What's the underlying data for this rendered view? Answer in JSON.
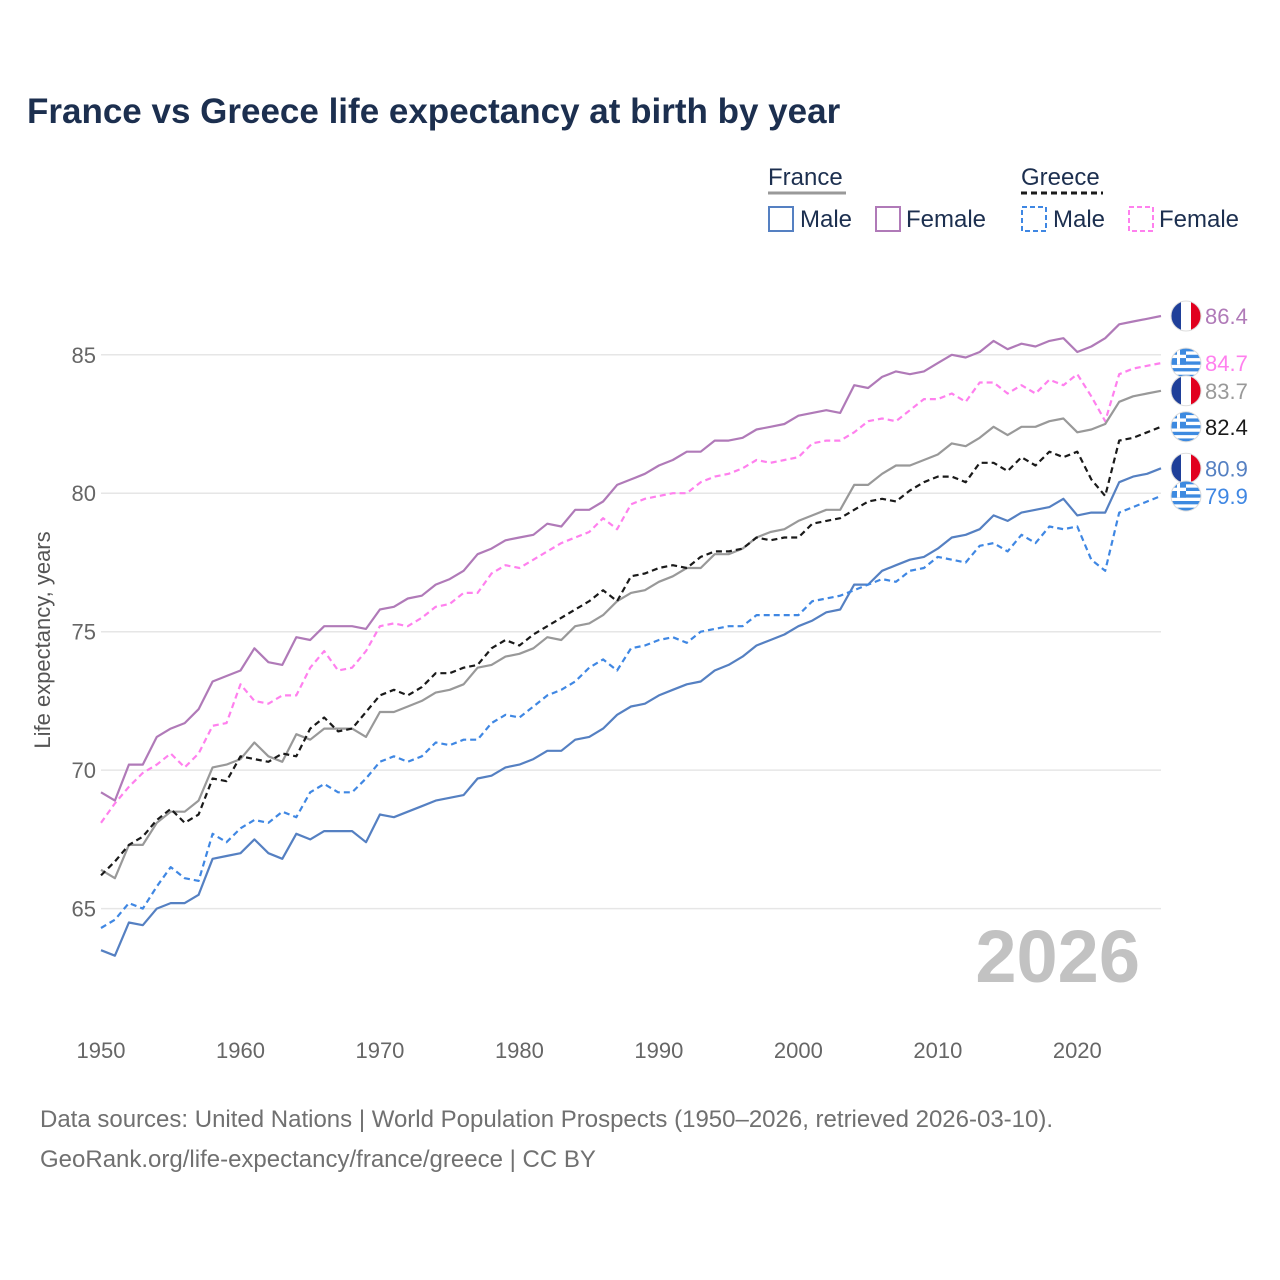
{
  "chart_data": {
    "type": "line",
    "title": "France vs Greece life expectancy at birth by year",
    "xlabel": "",
    "ylabel": "Life expectancy, years",
    "xlim": [
      1950,
      2026
    ],
    "ylim": [
      61.7,
      87.7
    ],
    "x_ticks": [
      1950,
      1960,
      1970,
      1980,
      1990,
      2000,
      2010,
      2020
    ],
    "y_ticks": [
      65,
      70,
      75,
      80,
      85
    ],
    "year_label": "2026",
    "legend": {
      "groups": [
        {
          "name": "France",
          "entries": [
            "Male",
            "Female"
          ]
        },
        {
          "name": "Greece",
          "entries": [
            "Male",
            "Female"
          ]
        }
      ],
      "placement": "top-right"
    },
    "x": [
      1950,
      1951,
      1952,
      1953,
      1954,
      1955,
      1956,
      1957,
      1958,
      1959,
      1960,
      1961,
      1962,
      1963,
      1964,
      1965,
      1966,
      1967,
      1968,
      1969,
      1970,
      1971,
      1972,
      1973,
      1974,
      1975,
      1976,
      1977,
      1978,
      1979,
      1980,
      1981,
      1982,
      1983,
      1984,
      1985,
      1986,
      1987,
      1988,
      1989,
      1990,
      1991,
      1992,
      1993,
      1994,
      1995,
      1996,
      1997,
      1998,
      1999,
      2000,
      2001,
      2002,
      2003,
      2004,
      2005,
      2006,
      2007,
      2008,
      2009,
      2010,
      2011,
      2012,
      2013,
      2014,
      2015,
      2016,
      2017,
      2018,
      2019,
      2020,
      2021,
      2022,
      2023,
      2024,
      2025,
      2026
    ],
    "series": [
      {
        "key": "fr_female",
        "name": "France Female",
        "country": "France",
        "color": "#b07ab8",
        "dashed": false,
        "end_label": "86.4",
        "values": [
          69.2,
          68.9,
          70.2,
          70.2,
          71.2,
          71.5,
          71.7,
          72.2,
          73.2,
          73.4,
          73.6,
          74.4,
          73.9,
          73.8,
          74.8,
          74.7,
          75.2,
          75.2,
          75.2,
          75.1,
          75.8,
          75.9,
          76.2,
          76.3,
          76.7,
          76.9,
          77.2,
          77.8,
          78.0,
          78.3,
          78.4,
          78.5,
          78.9,
          78.8,
          79.4,
          79.4,
          79.7,
          80.3,
          80.5,
          80.7,
          81.0,
          81.2,
          81.5,
          81.5,
          81.9,
          81.9,
          82.0,
          82.3,
          82.4,
          82.5,
          82.8,
          82.9,
          83.0,
          82.9,
          83.9,
          83.8,
          84.2,
          84.4,
          84.3,
          84.4,
          84.7,
          85.0,
          84.9,
          85.1,
          85.5,
          85.2,
          85.4,
          85.3,
          85.5,
          85.6,
          85.1,
          85.3,
          85.6,
          86.1,
          86.2,
          86.3,
          86.4
        ]
      },
      {
        "key": "gr_female",
        "name": "Greece Female",
        "country": "Greece",
        "color": "#ff80ee",
        "dashed": true,
        "end_label": "84.7",
        "values": [
          68.1,
          68.8,
          69.4,
          69.9,
          70.2,
          70.6,
          70.1,
          70.6,
          71.6,
          71.7,
          73.1,
          72.5,
          72.4,
          72.7,
          72.7,
          73.7,
          74.3,
          73.6,
          73.7,
          74.3,
          75.2,
          75.3,
          75.2,
          75.5,
          75.9,
          76.0,
          76.4,
          76.4,
          77.1,
          77.4,
          77.3,
          77.6,
          77.9,
          78.2,
          78.4,
          78.6,
          79.1,
          78.7,
          79.6,
          79.8,
          79.9,
          80.0,
          80.0,
          80.4,
          80.6,
          80.7,
          80.9,
          81.2,
          81.1,
          81.2,
          81.3,
          81.8,
          81.9,
          81.9,
          82.2,
          82.6,
          82.7,
          82.6,
          83.0,
          83.4,
          83.4,
          83.6,
          83.3,
          84.0,
          84.0,
          83.6,
          83.9,
          83.6,
          84.1,
          83.9,
          84.3,
          83.5,
          82.6,
          84.3,
          84.5,
          84.6,
          84.7
        ]
      },
      {
        "key": "fr_both",
        "name": "France",
        "country": "France",
        "color": "#999999",
        "dashed": false,
        "end_label": "83.7",
        "values": [
          66.4,
          66.1,
          67.3,
          67.3,
          68.1,
          68.5,
          68.5,
          68.9,
          70.1,
          70.2,
          70.4,
          71.0,
          70.5,
          70.3,
          71.3,
          71.1,
          71.5,
          71.5,
          71.5,
          71.2,
          72.1,
          72.1,
          72.3,
          72.5,
          72.8,
          72.9,
          73.1,
          73.7,
          73.8,
          74.1,
          74.2,
          74.4,
          74.8,
          74.7,
          75.2,
          75.3,
          75.6,
          76.1,
          76.4,
          76.5,
          76.8,
          77.0,
          77.3,
          77.3,
          77.8,
          77.8,
          78.0,
          78.4,
          78.6,
          78.7,
          79.0,
          79.2,
          79.4,
          79.4,
          80.3,
          80.3,
          80.7,
          81.0,
          81.0,
          81.2,
          81.4,
          81.8,
          81.7,
          82.0,
          82.4,
          82.1,
          82.4,
          82.4,
          82.6,
          82.7,
          82.2,
          82.3,
          82.5,
          83.3,
          83.5,
          83.6,
          83.7
        ]
      },
      {
        "key": "gr_both",
        "name": "Greece",
        "country": "Greece",
        "color": "#1a1a1a",
        "dashed": true,
        "end_label": "82.4",
        "values": [
          66.2,
          66.7,
          67.3,
          67.6,
          68.2,
          68.6,
          68.1,
          68.4,
          69.7,
          69.6,
          70.5,
          70.4,
          70.3,
          70.6,
          70.5,
          71.5,
          71.9,
          71.4,
          71.5,
          72.1,
          72.7,
          72.9,
          72.7,
          73.0,
          73.5,
          73.5,
          73.7,
          73.8,
          74.4,
          74.7,
          74.5,
          74.9,
          75.2,
          75.5,
          75.8,
          76.1,
          76.5,
          76.1,
          77.0,
          77.1,
          77.3,
          77.4,
          77.3,
          77.7,
          77.9,
          77.9,
          78.0,
          78.4,
          78.3,
          78.4,
          78.4,
          78.9,
          79.0,
          79.1,
          79.4,
          79.7,
          79.8,
          79.7,
          80.1,
          80.4,
          80.6,
          80.6,
          80.4,
          81.1,
          81.1,
          80.8,
          81.3,
          81.0,
          81.5,
          81.3,
          81.5,
          80.5,
          79.9,
          81.9,
          82.0,
          82.2,
          82.4
        ]
      },
      {
        "key": "fr_male",
        "name": "France Male",
        "country": "France",
        "color": "#5580c2",
        "dashed": false,
        "end_label": "80.9",
        "values": [
          63.5,
          63.3,
          64.5,
          64.4,
          65.0,
          65.2,
          65.2,
          65.5,
          66.8,
          66.9,
          67.0,
          67.5,
          67.0,
          66.8,
          67.7,
          67.5,
          67.8,
          67.8,
          67.8,
          67.4,
          68.4,
          68.3,
          68.5,
          68.7,
          68.9,
          69.0,
          69.1,
          69.7,
          69.8,
          70.1,
          70.2,
          70.4,
          70.7,
          70.7,
          71.1,
          71.2,
          71.5,
          72.0,
          72.3,
          72.4,
          72.7,
          72.9,
          73.1,
          73.2,
          73.6,
          73.8,
          74.1,
          74.5,
          74.7,
          74.9,
          75.2,
          75.4,
          75.7,
          75.8,
          76.7,
          76.7,
          77.2,
          77.4,
          77.6,
          77.7,
          78.0,
          78.4,
          78.5,
          78.7,
          79.2,
          79.0,
          79.3,
          79.4,
          79.5,
          79.8,
          79.2,
          79.3,
          79.3,
          80.4,
          80.6,
          80.7,
          80.9
        ]
      },
      {
        "key": "gr_male",
        "name": "Greece Male",
        "country": "Greece",
        "color": "#3f87e3",
        "dashed": true,
        "end_label": "79.9",
        "values": [
          64.3,
          64.6,
          65.2,
          65.0,
          65.8,
          66.5,
          66.1,
          66.0,
          67.7,
          67.4,
          67.9,
          68.2,
          68.1,
          68.5,
          68.3,
          69.2,
          69.5,
          69.2,
          69.2,
          69.7,
          70.3,
          70.5,
          70.3,
          70.5,
          71.0,
          70.9,
          71.1,
          71.1,
          71.7,
          72.0,
          71.9,
          72.3,
          72.7,
          72.9,
          73.2,
          73.7,
          74.0,
          73.6,
          74.4,
          74.5,
          74.7,
          74.8,
          74.6,
          75.0,
          75.1,
          75.2,
          75.2,
          75.6,
          75.6,
          75.6,
          75.6,
          76.1,
          76.2,
          76.3,
          76.5,
          76.7,
          76.9,
          76.8,
          77.2,
          77.3,
          77.7,
          77.6,
          77.5,
          78.1,
          78.2,
          77.9,
          78.5,
          78.2,
          78.8,
          78.7,
          78.8,
          77.6,
          77.2,
          79.3,
          79.5,
          79.7,
          79.9
        ]
      }
    ]
  },
  "source": {
    "line1": "Data sources: United Nations | World Population Prospects (1950–2026, retrieved 2026-03-10).",
    "line2": "GeoRank.org/life-expectancy/france/greece | CC BY"
  }
}
